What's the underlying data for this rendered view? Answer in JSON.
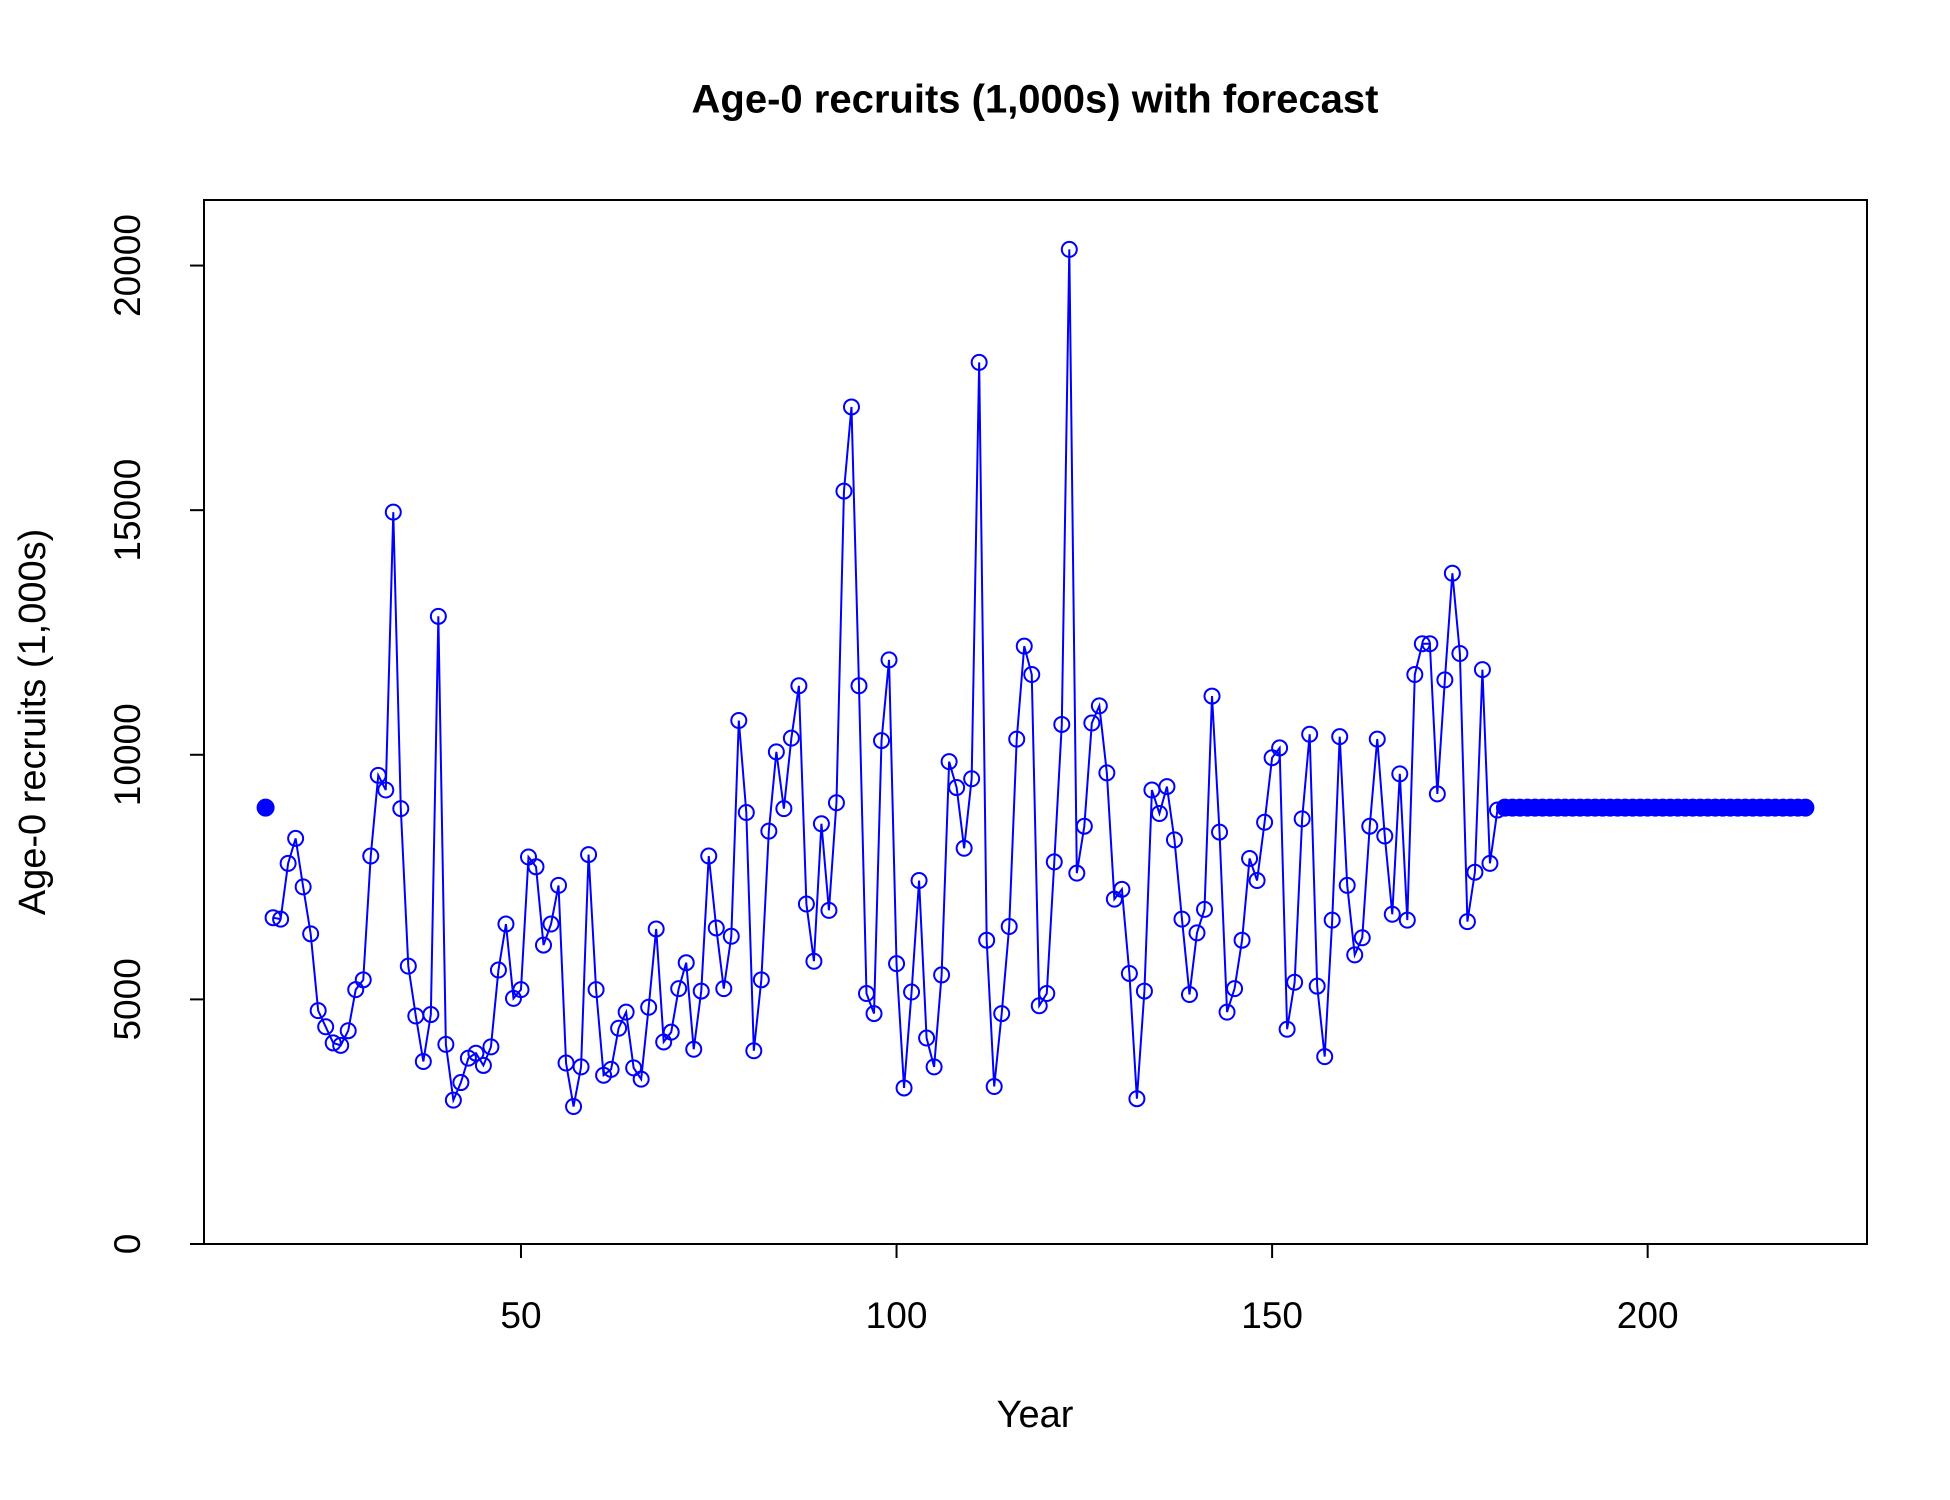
{
  "chart_data": {
    "type": "line",
    "title": "Age-0 recruits (1,000s) with forecast",
    "x_label": "Year",
    "y_label": "Age-0 recruits (1,000s)",
    "xlim": [
      7.8,
      229.2
    ],
    "ylim": [
      0,
      21340
    ],
    "xticks": [
      50,
      100,
      150,
      200
    ],
    "yticks": [
      0,
      5000,
      10000,
      15000,
      20000
    ],
    "series": [
      {
        "color": "#0000ff",
        "marker": "filled",
        "line": false,
        "x": [
          16
        ],
        "values": [
          8920
        ]
      },
      {
        "color": "#0000ff",
        "marker": "open",
        "line": true,
        "x": [
          17,
          18,
          19,
          20,
          21,
          22,
          23,
          24,
          25,
          26,
          27,
          28,
          29,
          30,
          31,
          32,
          33,
          34,
          35,
          36,
          37,
          38,
          39,
          40,
          41,
          42,
          43,
          44,
          45,
          46,
          47,
          48,
          49,
          50,
          51,
          52,
          53,
          54,
          55,
          56,
          57,
          58,
          59,
          60,
          61,
          62,
          63,
          64,
          65,
          66,
          67,
          68,
          69,
          70,
          71,
          72,
          73,
          74,
          75,
          76,
          77,
          78,
          79,
          80,
          81,
          82,
          83,
          84,
          85,
          86,
          87,
          88,
          89,
          90,
          91,
          92,
          93,
          94,
          95,
          96,
          97,
          98,
          99,
          100,
          101,
          102,
          103,
          104,
          105,
          106,
          107,
          108,
          109,
          110,
          111,
          112,
          113,
          114,
          115,
          116,
          117,
          118,
          119,
          120,
          121,
          122,
          123,
          124,
          125,
          126,
          127,
          128,
          129,
          130,
          131,
          132,
          133,
          134,
          135,
          136,
          137,
          138,
          139,
          140,
          141,
          142,
          143,
          144,
          145,
          146,
          147,
          148,
          149,
          150,
          151,
          152,
          153,
          154,
          155,
          156,
          157,
          158,
          159,
          160,
          161,
          162,
          163,
          164,
          165,
          166,
          167,
          168,
          169,
          170,
          171,
          172,
          173,
          174,
          175,
          176,
          177,
          178,
          179,
          180
        ],
        "values": [
          6670,
          6640,
          7780,
          8290,
          7300,
          6340,
          4770,
          4440,
          4110,
          4060,
          4360,
          5200,
          5400,
          7930,
          9580,
          9280,
          14960,
          8900,
          5680,
          4660,
          3730,
          4690,
          12830,
          4080,
          2940,
          3300,
          3800,
          3900,
          3650,
          4030,
          5600,
          6540,
          5020,
          5200,
          7910,
          7710,
          6110,
          6540,
          7330,
          3700,
          2810,
          3620,
          7960,
          5200,
          3450,
          3570,
          4410,
          4740,
          3600,
          3370,
          4840,
          6440,
          4130,
          4330,
          5220,
          5750,
          3980,
          5170,
          7930,
          6460,
          5220,
          6290,
          10700,
          8820,
          3950,
          5400,
          8440,
          10060,
          8900,
          10340,
          11410,
          6950,
          5780,
          8590,
          6820,
          9020,
          15390,
          17110,
          11410,
          5120,
          4710,
          10290,
          11940,
          5730,
          3190,
          5150,
          7430,
          4210,
          3620,
          5500,
          9860,
          9330,
          8090,
          9510,
          18020,
          6210,
          3220,
          4710,
          6490,
          10320,
          12220,
          11640,
          4870,
          5120,
          7810,
          10620,
          20330,
          7580,
          8540,
          10650,
          11000,
          9630,
          7050,
          7250,
          5530,
          2970,
          5170,
          9280,
          8800,
          9350,
          8260,
          6640,
          5100,
          6360,
          6840,
          11200,
          8420,
          4740,
          5220,
          6210,
          7880,
          7430,
          8620,
          9940,
          10140,
          4390,
          5350,
          8690,
          10420,
          5270,
          3830,
          6620,
          10370,
          7330,
          5910,
          6260,
          8540,
          10320,
          8340,
          6740,
          9610,
          6620,
          11640,
          12270,
          12270,
          9200,
          11530,
          13710,
          12070,
          6590,
          7600,
          11740,
          7780,
          8870
        ]
      },
      {
        "color": "#0000ff",
        "marker": "filled",
        "line": false,
        "x": [
          181,
          182,
          183,
          184,
          185,
          186,
          187,
          188,
          189,
          190,
          191,
          192,
          193,
          194,
          195,
          196,
          197,
          198,
          199,
          200,
          201,
          202,
          203,
          204,
          205,
          206,
          207,
          208,
          209,
          210,
          211,
          212,
          213,
          214,
          215,
          216,
          217,
          218,
          219,
          220,
          221
        ],
        "values": [
          8920,
          8920,
          8920,
          8920,
          8920,
          8920,
          8920,
          8920,
          8920,
          8920,
          8920,
          8920,
          8920,
          8920,
          8920,
          8920,
          8920,
          8920,
          8920,
          8920,
          8920,
          8920,
          8920,
          8920,
          8920,
          8920,
          8920,
          8920,
          8920,
          8920,
          8920,
          8920,
          8920,
          8920,
          8920,
          8920,
          8920,
          8920,
          8920,
          8920,
          8920
        ]
      }
    ]
  }
}
